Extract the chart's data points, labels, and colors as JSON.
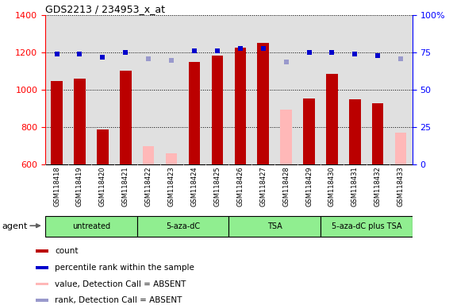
{
  "title": "GDS2213 / 234953_x_at",
  "samples": [
    "GSM118418",
    "GSM118419",
    "GSM118420",
    "GSM118421",
    "GSM118422",
    "GSM118423",
    "GSM118424",
    "GSM118425",
    "GSM118426",
    "GSM118427",
    "GSM118428",
    "GSM118429",
    "GSM118430",
    "GSM118431",
    "GSM118432",
    "GSM118433"
  ],
  "bar_values": [
    1050,
    1060,
    790,
    1105,
    null,
    null,
    1150,
    1185,
    1225,
    1250,
    null,
    955,
    1085,
    950,
    930,
    null
  ],
  "bar_absent_values": [
    null,
    null,
    null,
    null,
    700,
    660,
    null,
    null,
    null,
    null,
    895,
    null,
    null,
    null,
    null,
    770
  ],
  "bar_color_present": "#bb0000",
  "bar_color_absent": "#ffb8b8",
  "rank_present": [
    74,
    74,
    72,
    75,
    null,
    null,
    76,
    76,
    78,
    78,
    null,
    75,
    75,
    74,
    73,
    null
  ],
  "rank_absent": [
    null,
    null,
    null,
    null,
    71,
    70,
    null,
    null,
    null,
    null,
    69,
    null,
    null,
    null,
    null,
    71
  ],
  "rank_color_present": "#0000cc",
  "rank_color_absent": "#9999cc",
  "ylim_left": [
    600,
    1400
  ],
  "ylim_right": [
    0,
    100
  ],
  "yticks_left": [
    600,
    800,
    1000,
    1200,
    1400
  ],
  "yticks_right": [
    0,
    25,
    50,
    75,
    100
  ],
  "ytick_labels_right": [
    "0",
    "25",
    "50",
    "75",
    "100%"
  ],
  "groups": [
    {
      "label": "untreated",
      "start": 0,
      "end": 3
    },
    {
      "label": "5-aza-dC",
      "start": 4,
      "end": 7
    },
    {
      "label": "TSA",
      "start": 8,
      "end": 11
    },
    {
      "label": "5-aza-dC plus TSA",
      "start": 12,
      "end": 15
    }
  ],
  "group_color": "#90ee90",
  "agent_label": "agent",
  "legend_items": [
    {
      "label": "count",
      "color": "#bb0000"
    },
    {
      "label": "percentile rank within the sample",
      "color": "#0000cc"
    },
    {
      "label": "value, Detection Call = ABSENT",
      "color": "#ffb8b8"
    },
    {
      "label": "rank, Detection Call = ABSENT",
      "color": "#9999cc"
    }
  ],
  "bg_plot": "#e0e0e0",
  "bg_labels": "#c8c8c8",
  "bar_width": 0.5
}
